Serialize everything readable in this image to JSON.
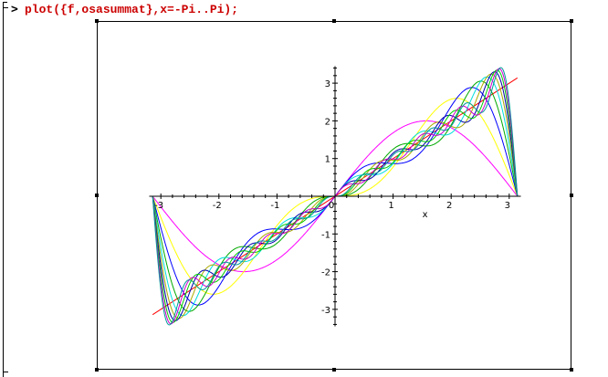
{
  "worksheet": {
    "prompt_symbol": ">",
    "command": "plot({f,osasummat},x=-Pi..Pi);"
  },
  "chart_data": {
    "type": "line",
    "title": "",
    "xlabel": "x",
    "ylabel": "",
    "xlim": [
      -3.2,
      3.2
    ],
    "ylim": [
      -3.45,
      3.45
    ],
    "grid": false,
    "x_ticks": [
      "-3",
      "-2",
      "-1",
      "0",
      "1",
      "2",
      "3"
    ],
    "y_ticks": [
      "-3",
      "-2",
      "-1",
      "1",
      "2",
      "3"
    ],
    "series": [
      {
        "kind": "target",
        "formula": "f(x)=x",
        "color": "#ff0000",
        "x_range": [
          -3.1416,
          3.1416
        ]
      },
      {
        "kind": "fourier_partial_sum",
        "terms": 1,
        "color": "#ff00ff"
      },
      {
        "kind": "fourier_partial_sum",
        "terms": 2,
        "color": "#ffff00"
      },
      {
        "kind": "fourier_partial_sum",
        "terms": 3,
        "color": "#0000ff"
      },
      {
        "kind": "fourier_partial_sum",
        "terms": 4,
        "color": "#00aa00"
      },
      {
        "kind": "fourier_partial_sum",
        "terms": 5,
        "color": "#00dddd"
      },
      {
        "kind": "fourier_partial_sum",
        "terms": 6,
        "color": "#aaaa00"
      },
      {
        "kind": "fourier_partial_sum",
        "terms": 7,
        "color": "#0000aa"
      },
      {
        "kind": "fourier_partial_sum",
        "terms": 8,
        "color": "#00cc00"
      },
      {
        "kind": "fourier_partial_sum",
        "terms": 9,
        "color": "#cc00cc"
      },
      {
        "kind": "fourier_partial_sum",
        "terms": 10,
        "color": "#009999"
      }
    ]
  }
}
